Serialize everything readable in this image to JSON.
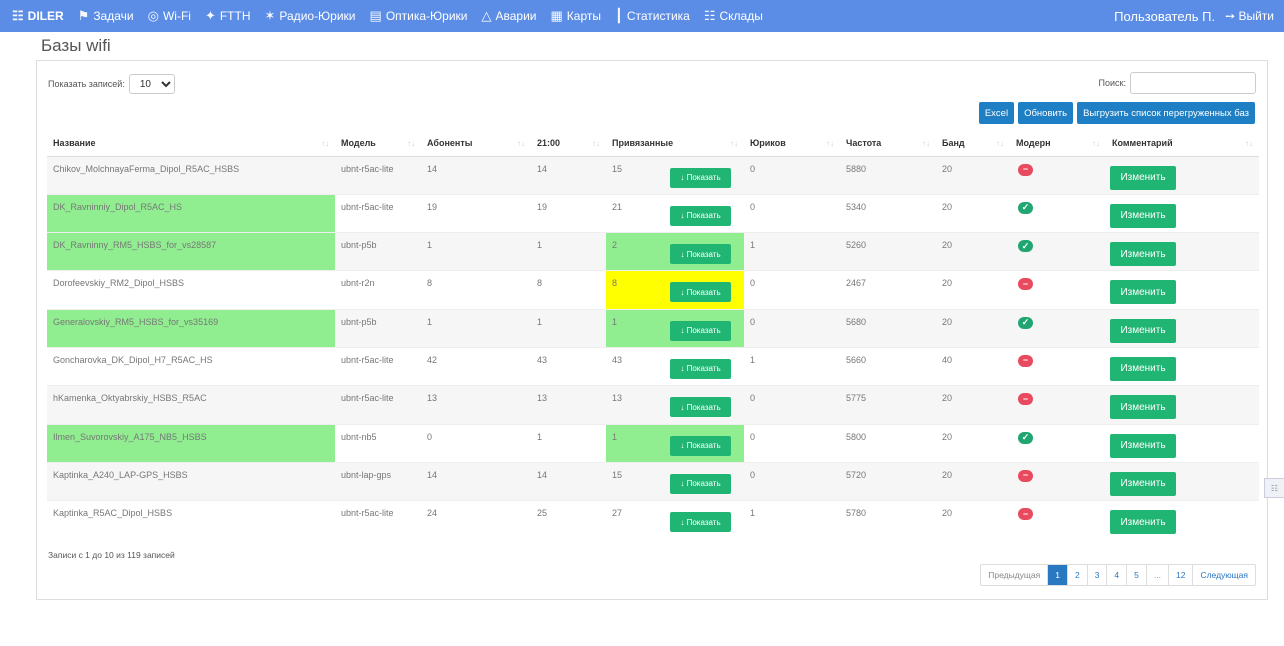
{
  "nav": {
    "brand": "DILER",
    "items": [
      {
        "label": "Задачи",
        "icon": "flag-icon"
      },
      {
        "label": "Wi-Fi",
        "icon": "wifi-icon"
      },
      {
        "label": "FTTH",
        "icon": "fiber-icon"
      },
      {
        "label": "Радио-Юрики",
        "icon": "radio-icon"
      },
      {
        "label": "Оптика-Юрики",
        "icon": "monitor-icon"
      },
      {
        "label": "Аварии",
        "icon": "fire-icon"
      },
      {
        "label": "Карты",
        "icon": "map-icon"
      },
      {
        "label": "Статистика",
        "icon": "bar-chart-icon"
      },
      {
        "label": "Склады",
        "icon": "warehouse-icon"
      }
    ],
    "user": "Пользователь П.",
    "logout": "Выйти"
  },
  "page": {
    "title": "Базы wifi"
  },
  "controls": {
    "length_label": "Показать записей:",
    "length_value": "10",
    "search_label": "Поиск:",
    "search_value": "",
    "btn_excel": "Excel",
    "btn_refresh": "Обновить",
    "btn_export": "Выгрузить список перегруженных баз"
  },
  "table": {
    "headers": {
      "name": "Название",
      "model": "Модель",
      "subs": "Абоненты",
      "time": "21:00",
      "bound": "Привязанные",
      "legal": "Юриков",
      "freq": "Частота",
      "band": "Банд",
      "modern": "Модерн",
      "comment": "Комментарий"
    },
    "show_label": "Показать",
    "edit_label": "Изменить",
    "rows": [
      {
        "name": "Chikov_MolchnayaFerma_Dipol_R5AC_HSBS",
        "model": "ubnt-r5ac-lite",
        "subs": "14",
        "time": "14",
        "bound": "15",
        "legal": "0",
        "freq": "5880",
        "band": "20",
        "modern": false,
        "name_hl": "",
        "bound_hl": ""
      },
      {
        "name": "DK_Ravninniy_Dipol_R5AC_HS",
        "model": "ubnt-r5ac-lite",
        "subs": "19",
        "time": "19",
        "bound": "21",
        "legal": "0",
        "freq": "5340",
        "band": "20",
        "modern": true,
        "name_hl": "g",
        "bound_hl": ""
      },
      {
        "name": "DK_Ravninny_RM5_HSBS_for_vs28587",
        "model": "ubnt-p5b",
        "subs": "1",
        "time": "1",
        "bound": "2",
        "legal": "1",
        "freq": "5260",
        "band": "20",
        "modern": true,
        "name_hl": "g",
        "bound_hl": "g"
      },
      {
        "name": "Dorofeevskiy_RM2_Dipol_HSBS",
        "model": "ubnt-r2n",
        "subs": "8",
        "time": "8",
        "bound": "8",
        "legal": "0",
        "freq": "2467",
        "band": "20",
        "modern": false,
        "name_hl": "",
        "bound_hl": "y"
      },
      {
        "name": "Generalovskiy_RM5_HSBS_for_vs35169",
        "model": "ubnt-p5b",
        "subs": "1",
        "time": "1",
        "bound": "1",
        "legal": "0",
        "freq": "5680",
        "band": "20",
        "modern": true,
        "name_hl": "g",
        "bound_hl": "g"
      },
      {
        "name": "Goncharovka_DK_Dipol_H7_R5AC_HS",
        "model": "ubnt-r5ac-lite",
        "subs": "42",
        "time": "43",
        "bound": "43",
        "legal": "1",
        "freq": "5660",
        "band": "40",
        "modern": false,
        "name_hl": "",
        "bound_hl": ""
      },
      {
        "name": "hKamenka_Oktyabrskiy_HSBS_R5AC",
        "model": "ubnt-r5ac-lite",
        "subs": "13",
        "time": "13",
        "bound": "13",
        "legal": "0",
        "freq": "5775",
        "band": "20",
        "modern": false,
        "name_hl": "",
        "bound_hl": ""
      },
      {
        "name": "Ilmen_Suvorovskiy_A175_NB5_HSBS",
        "model": "ubnt-nb5",
        "subs": "0",
        "time": "1",
        "bound": "1",
        "legal": "0",
        "freq": "5800",
        "band": "20",
        "modern": true,
        "name_hl": "g",
        "bound_hl": "g"
      },
      {
        "name": "Kaptinka_A240_LAP-GPS_HSBS",
        "model": "ubnt-lap-gps",
        "subs": "14",
        "time": "14",
        "bound": "15",
        "legal": "0",
        "freq": "5720",
        "band": "20",
        "modern": false,
        "name_hl": "",
        "bound_hl": ""
      },
      {
        "name": "Kaptinka_R5AC_Dipol_HSBS",
        "model": "ubnt-r5ac-lite",
        "subs": "24",
        "time": "25",
        "bound": "27",
        "legal": "1",
        "freq": "5780",
        "band": "20",
        "modern": false,
        "name_hl": "",
        "bound_hl": ""
      }
    ]
  },
  "footer": {
    "info": "Записи с 1 до 10 из 119 записей",
    "pager": [
      "Предыдущая",
      "1",
      "2",
      "3",
      "4",
      "5",
      "...",
      "12",
      "Следующая"
    ],
    "active_page": "1"
  },
  "colors": {
    "navbar": "#5b8de6",
    "green_highlight": "#90ee90",
    "yellow_highlight": "#ffff00",
    "button_green": "#21b573",
    "button_blue": "#1f7fc4"
  }
}
